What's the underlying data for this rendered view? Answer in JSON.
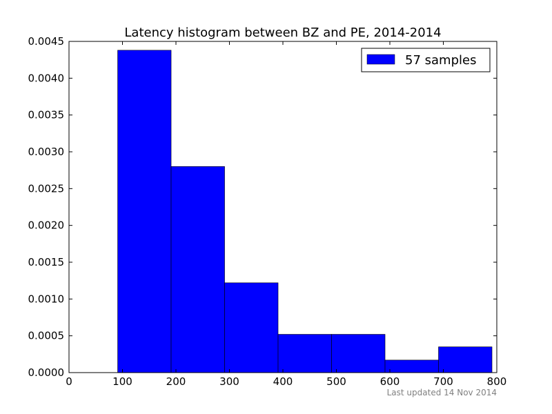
{
  "chart_data": {
    "type": "bar",
    "title": "Latency histogram between BZ and PE, 2014-2014",
    "xlabel": "",
    "ylabel": "",
    "xlim": [
      0,
      800
    ],
    "ylim": [
      0,
      0.0045
    ],
    "x_ticks": [
      0,
      100,
      200,
      300,
      400,
      500,
      600,
      700,
      800
    ],
    "y_ticks": [
      "0.0000",
      "0.0005",
      "0.0010",
      "0.0015",
      "0.0020",
      "0.0025",
      "0.0030",
      "0.0035",
      "0.0040",
      "0.0045"
    ],
    "grid": false,
    "legend_position": "top-right",
    "series": [
      {
        "name": "57 samples",
        "color": "#0000ff",
        "bins": [
          {
            "x0": 91,
            "x1": 191,
            "value": 0.00438
          },
          {
            "x0": 191,
            "x1": 291,
            "value": 0.0028
          },
          {
            "x0": 291,
            "x1": 391,
            "value": 0.00122
          },
          {
            "x0": 391,
            "x1": 491,
            "value": 0.00052
          },
          {
            "x0": 491,
            "x1": 591,
            "value": 0.00052
          },
          {
            "x0": 591,
            "x1": 691,
            "value": 0.00017
          },
          {
            "x0": 691,
            "x1": 791,
            "value": 0.00035
          }
        ]
      }
    ]
  },
  "footer": {
    "note": "Last updated 14 Nov 2014"
  }
}
